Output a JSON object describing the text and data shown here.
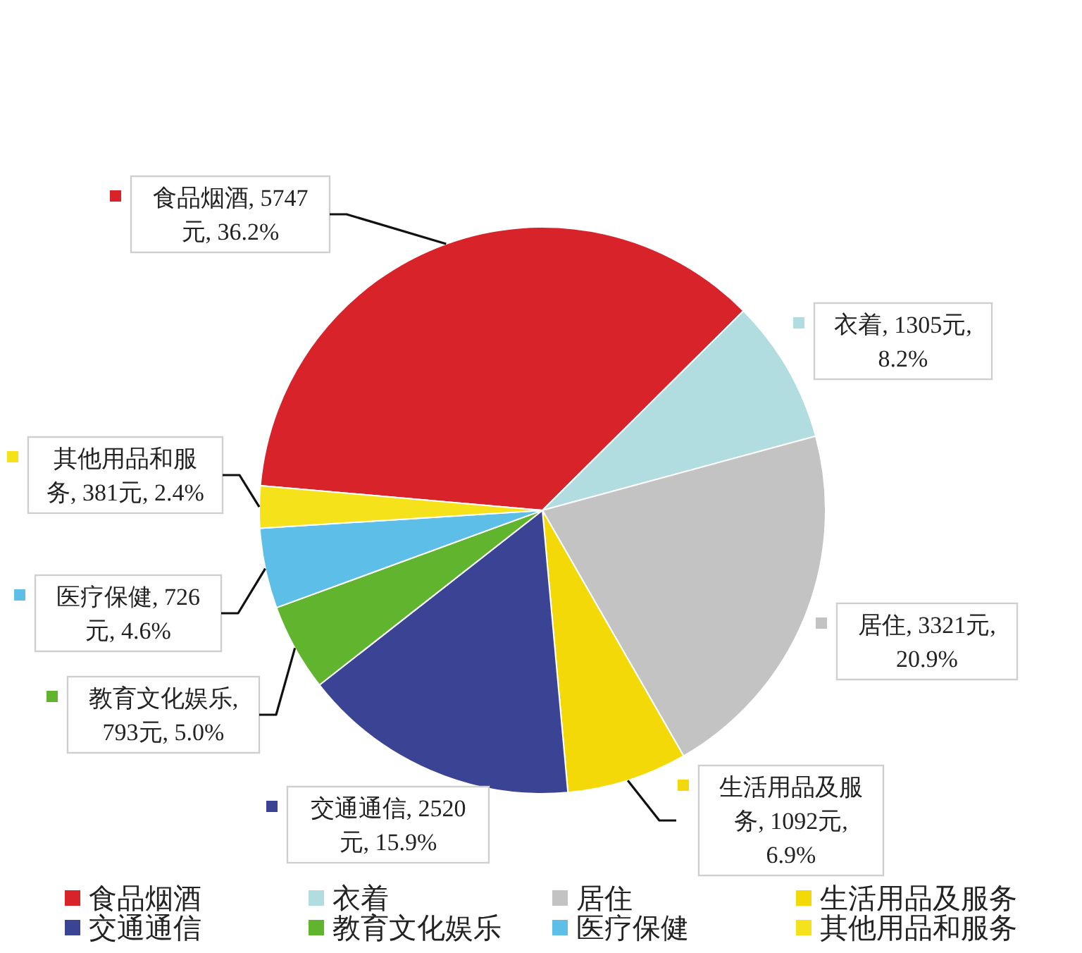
{
  "chart_data": {
    "type": "pie",
    "categories": [
      "食品烟酒",
      "衣着",
      "居住",
      "生活用品及服务",
      "交通通信",
      "教育文化娱乐",
      "医疗保健",
      "其他用品和服务"
    ],
    "values": [
      5747,
      1305,
      3321,
      1092,
      2520,
      793,
      726,
      381
    ],
    "colors": [
      "#d9232a",
      "#b2dde0",
      "#c3c3c3",
      "#f3d908",
      "#3b4494",
      "#60b42e",
      "#5dbfe8",
      "#f6e21a"
    ],
    "value_labels": [
      "食品烟酒, 5747元, 36.2%",
      "衣着, 1305元, 8.2%",
      "居住, 3321元, 20.9%",
      "生活用品及服务, 1092元, 6.9%",
      "交通通信, 2520元, 15.9%",
      "教育文化娱乐, 793元, 5.0%",
      "医疗保健, 726元, 4.6%",
      "其他用品和服务, 381元, 2.4%"
    ],
    "legend": "bottom"
  }
}
